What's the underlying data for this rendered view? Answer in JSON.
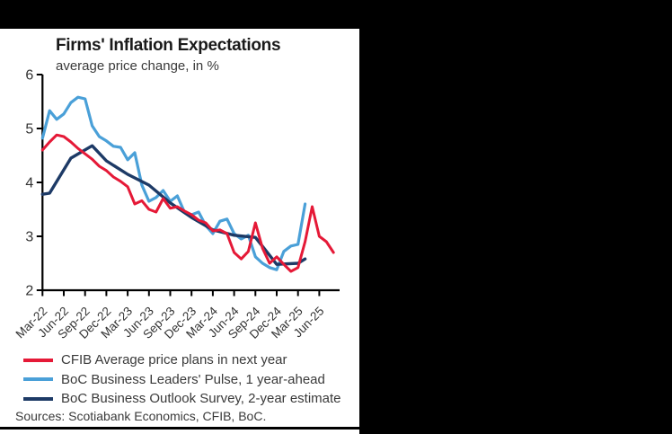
{
  "canvas": {
    "background_color": "#000000",
    "card_color": "#ffffff",
    "axis_color": "#000000",
    "text_color": "#3a3a3a"
  },
  "chart_data": {
    "type": "line",
    "title": "Firms' Inflation Expectations",
    "subtitle": "average price change, in %",
    "ylabel": "",
    "xlabel": "",
    "ylim": [
      2,
      6
    ],
    "yticks": [
      6,
      5,
      4,
      3,
      2
    ],
    "x_tick_labels": [
      "Mar-22",
      "Jun-22",
      "Sep-22",
      "Dec-22",
      "Mar-23",
      "Jun-23",
      "Sep-23",
      "Dec-23",
      "Mar-24",
      "Jun-24",
      "Sep-24",
      "Dec-24",
      "Mar-25",
      "Jun-25"
    ],
    "months_per_tick": 3,
    "x_start_label": "Mar-22",
    "grid": false,
    "legend_position": "below",
    "series": [
      {
        "id": "cfib",
        "name": "CFIB Average price plans in next year",
        "color": "#e51937",
        "line_width": 3,
        "start_month": 0,
        "values": [
          4.6,
          4.75,
          4.88,
          4.85,
          4.75,
          4.63,
          4.53,
          4.43,
          4.3,
          4.22,
          4.1,
          4.02,
          3.92,
          3.6,
          3.66,
          3.5,
          3.45,
          3.7,
          3.52,
          3.55,
          3.47,
          3.4,
          3.3,
          3.25,
          3.1,
          3.12,
          3.05,
          2.7,
          2.58,
          2.72,
          3.25,
          2.78,
          2.5,
          2.62,
          2.48,
          2.35,
          2.42,
          2.9,
          3.55,
          3.0,
          2.9,
          2.7
        ]
      },
      {
        "id": "blp",
        "name": "BoC Business Leaders' Pulse, 1 year-ahead",
        "color": "#4aa0d8",
        "line_width": 3.2,
        "start_month": 0,
        "values": [
          4.82,
          5.33,
          5.17,
          5.27,
          5.48,
          5.58,
          5.55,
          5.05,
          4.85,
          4.77,
          4.67,
          4.65,
          4.42,
          4.55,
          3.95,
          3.65,
          3.72,
          3.85,
          3.65,
          3.75,
          3.45,
          3.4,
          3.45,
          3.2,
          3.05,
          3.28,
          3.32,
          3.05,
          2.95,
          3.02,
          2.62,
          2.5,
          2.42,
          2.38,
          2.72,
          2.82,
          2.85,
          3.6
        ]
      },
      {
        "id": "bos",
        "name": "BoC Business Outlook Survey, 2-year estimate",
        "color": "#1d3a66",
        "line_width": 3.4,
        "points": [
          [
            0,
            3.78
          ],
          [
            1,
            3.8
          ],
          [
            4,
            4.45
          ],
          [
            7,
            4.68
          ],
          [
            9,
            4.4
          ],
          [
            12,
            4.15
          ],
          [
            15,
            3.95
          ],
          [
            18,
            3.62
          ],
          [
            21,
            3.35
          ],
          [
            24,
            3.12
          ],
          [
            27,
            3.02
          ],
          [
            30,
            2.98
          ],
          [
            33,
            2.48
          ],
          [
            36,
            2.5
          ],
          [
            37,
            2.58
          ]
        ]
      }
    ],
    "draw_order": [
      1,
      2,
      0
    ],
    "sources": "Sources: Scotiabank Economics, CFIB, BoC."
  }
}
